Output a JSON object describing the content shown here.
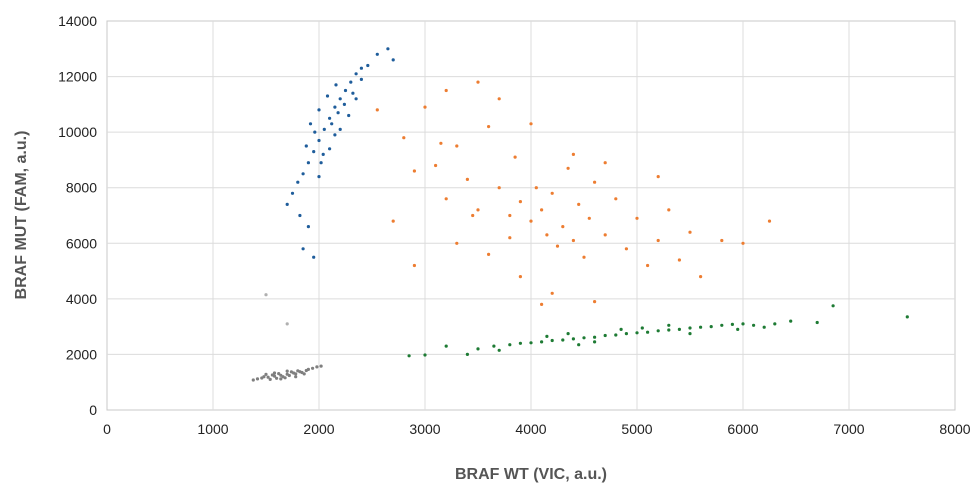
{
  "chart_data": {
    "type": "scatter",
    "title": "",
    "xlabel": "BRAF WT (VIC, a.u.)",
    "ylabel": "BRAF MUT (FAM, a.u.)",
    "xlim": [
      0,
      8000
    ],
    "ylim": [
      0,
      14000
    ],
    "xticks": [
      0,
      1000,
      2000,
      3000,
      4000,
      5000,
      6000,
      7000,
      8000
    ],
    "yticks": [
      0,
      2000,
      4000,
      6000,
      8000,
      10000,
      12000,
      14000
    ],
    "grid": true,
    "legend": "none",
    "clusters": [
      {
        "color": "#7f7f7f",
        "points": [
          [
            1460,
            1150
          ],
          [
            1520,
            1180
          ],
          [
            1580,
            1220
          ],
          [
            1640,
            1250
          ],
          [
            1700,
            1290
          ],
          [
            1760,
            1330
          ],
          [
            1820,
            1380
          ],
          [
            1880,
            1420
          ],
          [
            1540,
            1100
          ],
          [
            1600,
            1140
          ],
          [
            1660,
            1200
          ],
          [
            1720,
            1240
          ],
          [
            1780,
            1300
          ],
          [
            1840,
            1350
          ],
          [
            1900,
            1460
          ],
          [
            1420,
            1120
          ],
          [
            1480,
            1200
          ],
          [
            1560,
            1260
          ],
          [
            1620,
            1310
          ],
          [
            1680,
            1160
          ],
          [
            1740,
            1370
          ],
          [
            1800,
            1410
          ],
          [
            1860,
            1300
          ],
          [
            1940,
            1500
          ],
          [
            1500,
            1280
          ],
          [
            1640,
            1120
          ],
          [
            1700,
            1400
          ],
          [
            1580,
            1330
          ],
          [
            1780,
            1200
          ],
          [
            1980,
            1550
          ],
          [
            2020,
            1580
          ],
          [
            1380,
            1080
          ]
        ]
      },
      {
        "color": "#1f5d9b",
        "points": [
          [
            1850,
            8500
          ],
          [
            1900,
            8900
          ],
          [
            1950,
            9300
          ],
          [
            2000,
            9700
          ],
          [
            2050,
            10100
          ],
          [
            2100,
            10500
          ],
          [
            2150,
            10900
          ],
          [
            2200,
            11200
          ],
          [
            2250,
            11500
          ],
          [
            2300,
            11800
          ],
          [
            2350,
            12100
          ],
          [
            2400,
            12300
          ],
          [
            1800,
            8200
          ],
          [
            1880,
            9500
          ],
          [
            1960,
            10000
          ],
          [
            2040,
            9200
          ],
          [
            2120,
            10300
          ],
          [
            2180,
            10700
          ],
          [
            2240,
            11000
          ],
          [
            2320,
            11400
          ],
          [
            2400,
            11900
          ],
          [
            2460,
            12400
          ],
          [
            2550,
            12800
          ],
          [
            2650,
            13000
          ],
          [
            2700,
            12600
          ],
          [
            1750,
            7800
          ],
          [
            1700,
            7400
          ],
          [
            1820,
            7000
          ],
          [
            1900,
            6600
          ],
          [
            1950,
            5500
          ],
          [
            1850,
            5800
          ],
          [
            2000,
            8400
          ],
          [
            2100,
            9400
          ],
          [
            2200,
            10100
          ],
          [
            2280,
            10600
          ],
          [
            2350,
            11200
          ],
          [
            1920,
            10300
          ],
          [
            2000,
            10800
          ],
          [
            2080,
            11300
          ],
          [
            2160,
            11700
          ],
          [
            2020,
            8900
          ],
          [
            2150,
            9900
          ]
        ]
      },
      {
        "color": "#ed7d31",
        "points": [
          [
            2550,
            10800
          ],
          [
            2800,
            9800
          ],
          [
            2900,
            8600
          ],
          [
            3100,
            8800
          ],
          [
            3200,
            7600
          ],
          [
            3300,
            9500
          ],
          [
            3400,
            8300
          ],
          [
            3500,
            7200
          ],
          [
            3600,
            10200
          ],
          [
            3700,
            8000
          ],
          [
            3800,
            7000
          ],
          [
            3850,
            9100
          ],
          [
            3900,
            7500
          ],
          [
            4000,
            6800
          ],
          [
            4000,
            10300
          ],
          [
            4050,
            8000
          ],
          [
            4100,
            7200
          ],
          [
            4150,
            6300
          ],
          [
            4200,
            7800
          ],
          [
            4250,
            5900
          ],
          [
            4300,
            6600
          ],
          [
            4350,
            8700
          ],
          [
            4400,
            6100
          ],
          [
            4450,
            7400
          ],
          [
            4500,
            5500
          ],
          [
            4550,
            6900
          ],
          [
            4600,
            8200
          ],
          [
            4700,
            6300
          ],
          [
            4800,
            7600
          ],
          [
            4900,
            5800
          ],
          [
            5000,
            6900
          ],
          [
            5100,
            5200
          ],
          [
            5200,
            6100
          ],
          [
            5300,
            7200
          ],
          [
            5400,
            5400
          ],
          [
            5500,
            6400
          ],
          [
            5600,
            4800
          ],
          [
            3000,
            10900
          ],
          [
            3200,
            11500
          ],
          [
            3500,
            11800
          ],
          [
            3700,
            11200
          ],
          [
            2700,
            6800
          ],
          [
            2900,
            5200
          ],
          [
            3300,
            6000
          ],
          [
            3600,
            5600
          ],
          [
            3900,
            4800
          ],
          [
            4200,
            4200
          ],
          [
            4600,
            3900
          ],
          [
            5800,
            6100
          ],
          [
            6000,
            6000
          ],
          [
            6250,
            6800
          ],
          [
            4100,
            3800
          ],
          [
            3800,
            6200
          ],
          [
            3450,
            7000
          ],
          [
            4700,
            8900
          ],
          [
            5200,
            8400
          ],
          [
            3150,
            9600
          ],
          [
            4400,
            9200
          ]
        ]
      },
      {
        "color": "#1e7b34",
        "points": [
          [
            2850,
            1950
          ],
          [
            3000,
            1980
          ],
          [
            3500,
            2200
          ],
          [
            3650,
            2300
          ],
          [
            3800,
            2350
          ],
          [
            3900,
            2400
          ],
          [
            4000,
            2420
          ],
          [
            4100,
            2450
          ],
          [
            4200,
            2500
          ],
          [
            4300,
            2520
          ],
          [
            4400,
            2560
          ],
          [
            4500,
            2600
          ],
          [
            4600,
            2620
          ],
          [
            4700,
            2680
          ],
          [
            4800,
            2700
          ],
          [
            4900,
            2750
          ],
          [
            5000,
            2780
          ],
          [
            5100,
            2800
          ],
          [
            5200,
            2850
          ],
          [
            5300,
            2880
          ],
          [
            5400,
            2900
          ],
          [
            5500,
            2950
          ],
          [
            5600,
            2980
          ],
          [
            5700,
            3000
          ],
          [
            5800,
            3050
          ],
          [
            5900,
            3080
          ],
          [
            6000,
            3100
          ],
          [
            6100,
            3050
          ],
          [
            6200,
            2980
          ],
          [
            6300,
            3100
          ],
          [
            6450,
            3200
          ],
          [
            6700,
            3150
          ],
          [
            7550,
            3350
          ],
          [
            3200,
            2300
          ],
          [
            3400,
            2000
          ],
          [
            4150,
            2650
          ],
          [
            4600,
            2450
          ],
          [
            5050,
            2950
          ],
          [
            5500,
            2750
          ],
          [
            5950,
            2900
          ],
          [
            4450,
            2350
          ],
          [
            4850,
            2900
          ],
          [
            6850,
            3750
          ],
          [
            4350,
            2750
          ],
          [
            5300,
            3050
          ],
          [
            3700,
            2150
          ]
        ]
      },
      {
        "color": "#b0b0b0",
        "points": [
          [
            1500,
            4150
          ],
          [
            1700,
            3100
          ]
        ]
      }
    ]
  }
}
